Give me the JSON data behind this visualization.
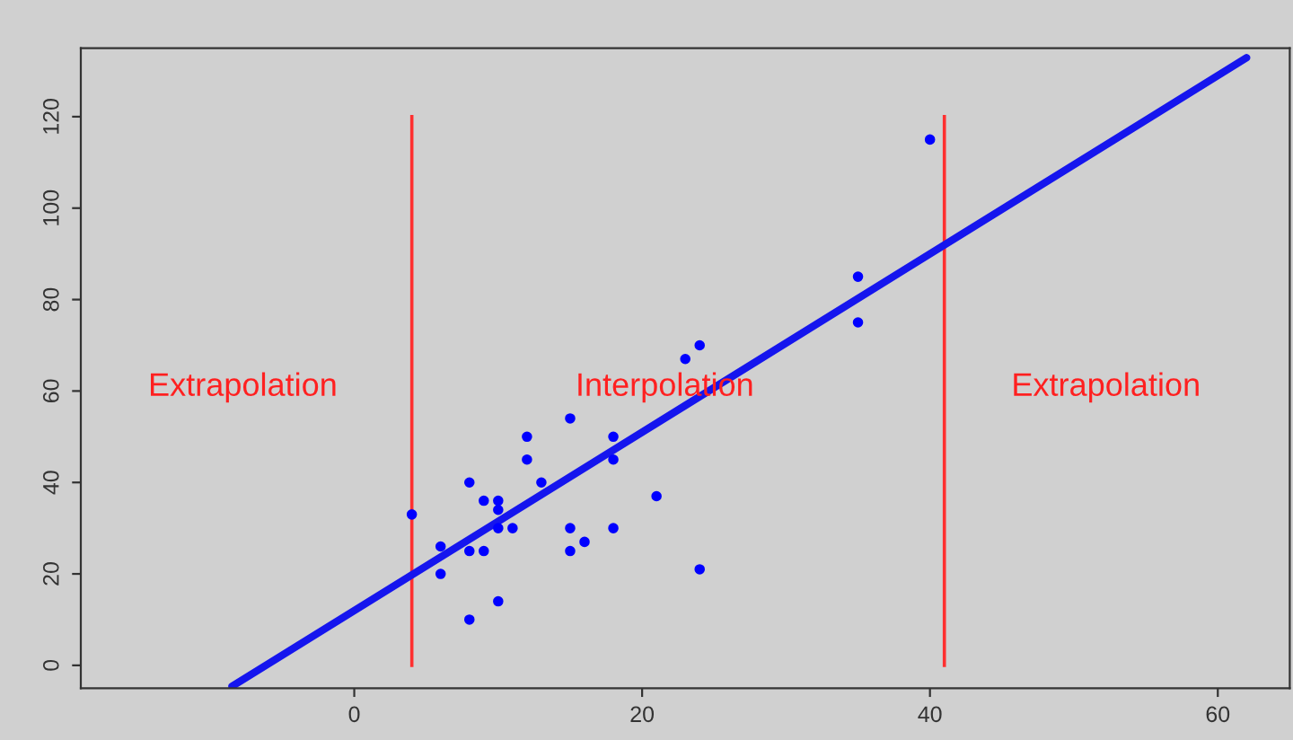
{
  "chart_data": {
    "type": "scatter",
    "xlim": [
      -19,
      65
    ],
    "ylim": [
      -5,
      135
    ],
    "xticks": [
      0,
      20,
      40,
      60
    ],
    "yticks": [
      0,
      20,
      40,
      60,
      80,
      100,
      120
    ],
    "grid": false,
    "series": [
      {
        "marker": "circle",
        "color": "#0000ff",
        "x": [
          4,
          6,
          6,
          8,
          8,
          8,
          9,
          9,
          10,
          10,
          10,
          10,
          11,
          12,
          12,
          13,
          15,
          15,
          15,
          16,
          18,
          18,
          18,
          21,
          24,
          23,
          24,
          35,
          35,
          40
        ],
        "values": [
          33,
          26,
          20,
          40,
          10,
          25,
          25,
          36,
          36,
          34,
          30,
          14,
          30,
          50,
          45,
          40,
          54,
          30,
          25,
          27,
          50,
          45,
          30,
          37,
          21,
          67,
          70,
          85,
          75,
          115
        ]
      },
      {
        "type": "line",
        "color": "#1515ee",
        "x": [
          -8.5,
          62
        ],
        "values": [
          -4.6,
          132.9
        ]
      }
    ],
    "ref_lines": [
      {
        "axis": "x",
        "value": 4,
        "color": "#ff3030"
      },
      {
        "axis": "x",
        "value": 41,
        "color": "#ff3030"
      }
    ],
    "annotations": [
      "Extrapolation",
      "Interpolation",
      "Extrapolation"
    ]
  }
}
